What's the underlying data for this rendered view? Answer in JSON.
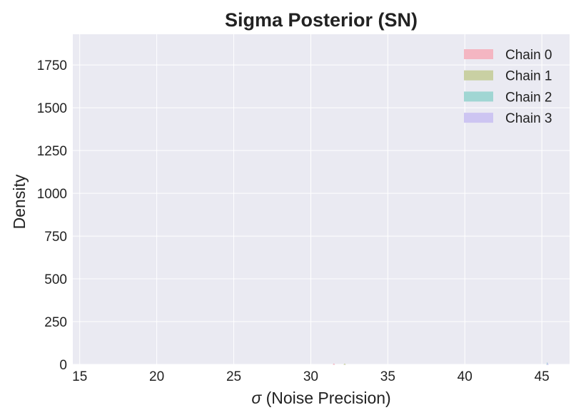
{
  "chart_data": {
    "type": "area",
    "title": "Sigma Posterior (SN)",
    "xlabel_symbol": "σ",
    "xlabel_text": " (Noise Precision)",
    "ylabel": "Density",
    "xlim": [
      14.55,
      46.8
    ],
    "ylim": [
      0,
      1930
    ],
    "xticks": [
      15,
      20,
      25,
      30,
      35,
      40,
      45
    ],
    "yticks": [
      0,
      250,
      500,
      750,
      1000,
      1250,
      1500,
      1750
    ],
    "grid": true,
    "legend_position": "top-right",
    "series": [
      {
        "name": "Chain 0",
        "color": "#f4b6c2",
        "points": [
          [
            31.48,
            0
          ],
          [
            31.5,
            2.5
          ],
          [
            31.52,
            0
          ]
        ]
      },
      {
        "name": "Chain 1",
        "color": "#c9d0a3",
        "points": [
          [
            32.18,
            0
          ],
          [
            32.2,
            2
          ],
          [
            32.22,
            0
          ]
        ]
      },
      {
        "name": "Chain 2",
        "color": "#a0d6d3",
        "points": [
          [
            45.33,
            0
          ],
          [
            45.35,
            6
          ],
          [
            45.37,
            0
          ]
        ]
      },
      {
        "name": "Chain 3",
        "color": "#cdc5f2",
        "points": [
          [
            45.36,
            0
          ],
          [
            45.38,
            4
          ],
          [
            45.4,
            0
          ]
        ]
      }
    ]
  },
  "colors": {
    "plot_background": "#eaeaf2",
    "grid": "#ffffff",
    "text": "#222222"
  }
}
